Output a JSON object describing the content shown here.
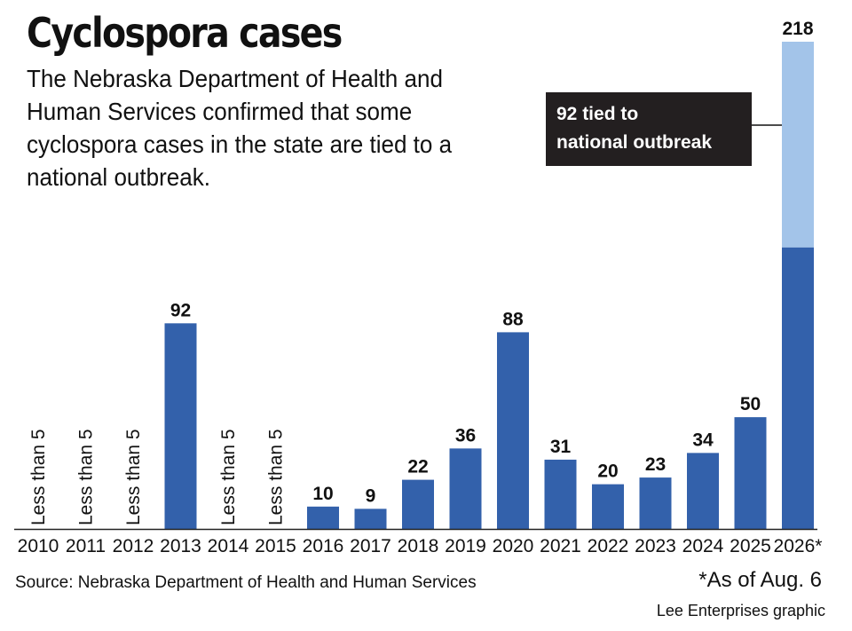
{
  "header": {
    "title": "Cyclospora cases",
    "subtitle": "The Nebraska Department of Health and Human Services confirmed that some cyclospora cases in the state are tied to a national outbreak."
  },
  "footer": {
    "source": "Source: Nebraska Department of Health and Human Services",
    "footnote": "*As of Aug. 6",
    "credit": "Lee Enterprises graphic"
  },
  "colors": {
    "bar": "#3361ab",
    "outbreak": "#a3c4e9",
    "annotation_bg": "#231f20",
    "axis": "#222222"
  },
  "chart_data": {
    "type": "bar",
    "stacked": true,
    "title": "Cyclospora cases",
    "categories": [
      "2010",
      "2011",
      "2012",
      "2013",
      "2014",
      "2015",
      "2016",
      "2017",
      "2018",
      "2019",
      "2020",
      "2021",
      "2022",
      "2023",
      "2024",
      "2025",
      "2026*"
    ],
    "totals": [
      null,
      null,
      null,
      92,
      null,
      null,
      10,
      9,
      22,
      36,
      88,
      31,
      20,
      23,
      34,
      50,
      218
    ],
    "value_labels": [
      "Less than 5",
      "Less than 5",
      "Less than 5",
      "92",
      "Less than 5",
      "Less than 5",
      "10",
      "9",
      "22",
      "36",
      "88",
      "31",
      "20",
      "23",
      "34",
      "50",
      "218"
    ],
    "outbreak_portion": [
      0,
      0,
      0,
      0,
      0,
      0,
      0,
      0,
      0,
      0,
      0,
      0,
      0,
      0,
      0,
      0,
      92
    ],
    "annotation": {
      "category": "2026*",
      "lines": [
        "92 tied to",
        "national outbreak"
      ]
    },
    "ylim": [
      0,
      218
    ],
    "grid": false,
    "legend": "none"
  }
}
